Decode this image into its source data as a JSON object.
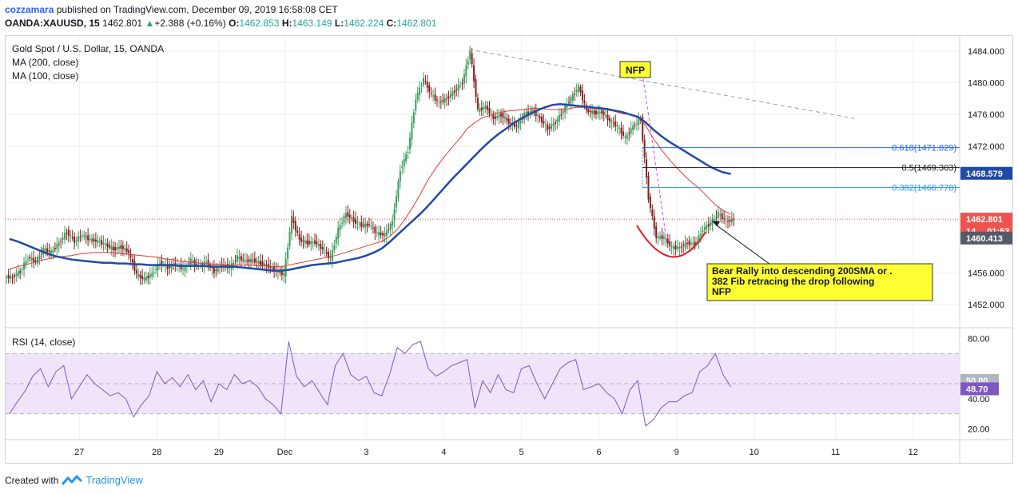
{
  "header": {
    "author": "cozzamara",
    "published_text": "published on TradingView.com, December 09, 2019 16:58:08 CET",
    "symbol": "OANDA:XAUUSD, 15",
    "last": "1462.801",
    "change": "+2.388 (+0.16%)",
    "o_label": "O:",
    "o": "1462.853",
    "h_label": "H:",
    "h": "1463.149",
    "l_label": "L:",
    "l": "1462.224",
    "c_label": "C:",
    "c": "1462.801"
  },
  "legend": [
    "Gold Spot / U.S. Dollar, 15, OANDA",
    "MA (200, close)",
    "MA (100, close)"
  ],
  "rsi_legend": "RSI (14, close)",
  "footer": {
    "created_with": "Created with",
    "brand": "TradingView"
  },
  "colors": {
    "candle": "#3a9e5e",
    "ma100": "#e53935",
    "ma200": "#1f4aa8",
    "rsi": "#7e57c2",
    "rsi_band": "#f0e4fb",
    "fib": "#2196f3",
    "note_bg": "#ffff33",
    "last_price": "#ef5350"
  },
  "chart_data": {
    "type": "candlestick",
    "title": "Gold Spot / U.S. Dollar, 15, OANDA",
    "x_ticks": [
      {
        "label": "27",
        "idx": 9.5
      },
      {
        "label": "28",
        "idx": 19.5
      },
      {
        "label": "29",
        "idx": 27.5
      },
      {
        "label": "Dec",
        "idx": 36
      },
      {
        "label": "3",
        "idx": 46.5
      },
      {
        "label": "4",
        "idx": 56.5
      },
      {
        "label": "5",
        "idx": 66.5
      },
      {
        "label": "6",
        "idx": 76.5
      },
      {
        "label": "9",
        "idx": 86.5
      },
      {
        "label": "10",
        "idx": 96.5
      },
      {
        "label": "11",
        "idx": 107
      },
      {
        "label": "12",
        "idx": 117
      }
    ],
    "x_range": [
      0,
      123
    ],
    "price_axis": {
      "min": 1449.5,
      "max": 1485.5,
      "ticks": [
        "1484.000",
        "1480.000",
        "1476.000",
        "1472.000",
        "1456.000",
        "1452.000"
      ]
    },
    "closes": [
      1455.5,
      1456.2,
      1458.0,
      1457.4,
      1459.0,
      1458.6,
      1459.8,
      1461.2,
      1460.0,
      1460.8,
      1460.2,
      1460.0,
      1459.6,
      1459.0,
      1459.3,
      1458.6,
      1455.8,
      1455.2,
      1455.9,
      1457.3,
      1456.7,
      1457.2,
      1456.5,
      1457.6,
      1456.8,
      1457.4,
      1456.2,
      1457.1,
      1456.7,
      1458.0,
      1457.5,
      1457.6,
      1457.2,
      1456.8,
      1456.3,
      1455.8,
      1463.0,
      1460.2,
      1459.8,
      1459.9,
      1459.0,
      1457.8,
      1461.5,
      1463.5,
      1462.6,
      1462.0,
      1462.1,
      1461.0,
      1460.8,
      1462.5,
      1469.0,
      1471.5,
      1478.0,
      1480.5,
      1478.5,
      1477.5,
      1478.0,
      1479.0,
      1480.0,
      1484.0,
      1476.5,
      1477.0,
      1475.5,
      1476.0,
      1475.0,
      1474.5,
      1476.0,
      1476.5,
      1475.5,
      1474.2,
      1475.0,
      1476.5,
      1478.0,
      1479.5,
      1476.5,
      1476.2,
      1476.3,
      1475.2,
      1474.5,
      1473.0,
      1474.5,
      1475.4,
      1465.5,
      1460.5,
      1460.5,
      1459.2,
      1459.2,
      1459.8,
      1459.6,
      1461.5,
      1462.3,
      1463.5,
      1462.5,
      1462.8
    ],
    "ma100": [
      1456.5,
      1456.8,
      1457.0,
      1457.3,
      1457.6,
      1457.8,
      1458.0,
      1458.1,
      1458.2,
      1458.4,
      1458.5,
      1458.6,
      1458.6,
      1458.6,
      1458.5,
      1458.4,
      1458.3,
      1458.2,
      1458.1,
      1458.0,
      1457.8,
      1457.7,
      1457.5,
      1457.4,
      1457.3,
      1457.2,
      1457.1,
      1457.1,
      1457.0,
      1457.0,
      1457.0,
      1457.0,
      1456.9,
      1456.9,
      1456.8,
      1456.8,
      1457.0,
      1457.2,
      1457.4,
      1457.6,
      1457.8,
      1458.0,
      1458.2,
      1458.5,
      1458.8,
      1459.1,
      1459.4,
      1459.7,
      1460.0,
      1460.6,
      1461.5,
      1462.8,
      1464.3,
      1466.0,
      1467.8,
      1469.3,
      1470.6,
      1471.8,
      1472.9,
      1474.2,
      1475.0,
      1475.6,
      1475.9,
      1476.2,
      1476.4,
      1476.5,
      1476.6,
      1476.7,
      1476.8,
      1476.7,
      1476.6,
      1476.6,
      1476.7,
      1476.9,
      1476.9,
      1476.8,
      1476.7,
      1476.6,
      1476.4,
      1476.1,
      1476.0,
      1475.8,
      1474.6,
      1473.0,
      1471.6,
      1470.4,
      1469.3,
      1468.3,
      1467.4,
      1466.6,
      1465.6,
      1464.6,
      1463.9,
      1463.4
    ],
    "ma200": [
      1460.3,
      1460.0,
      1459.6,
      1459.2,
      1458.8,
      1458.4,
      1458.1,
      1457.9,
      1457.7,
      1457.6,
      1457.5,
      1457.4,
      1457.3,
      1457.3,
      1457.2,
      1457.2,
      1457.1,
      1457.1,
      1457.0,
      1457.0,
      1457.0,
      1457.0,
      1456.9,
      1456.9,
      1456.9,
      1456.9,
      1456.8,
      1456.8,
      1456.8,
      1456.8,
      1456.7,
      1456.6,
      1456.5,
      1456.4,
      1456.3,
      1456.3,
      1456.4,
      1456.6,
      1456.8,
      1457.0,
      1457.1,
      1457.2,
      1457.3,
      1457.5,
      1457.7,
      1457.9,
      1458.2,
      1458.6,
      1459.1,
      1459.9,
      1460.8,
      1461.7,
      1462.6,
      1463.5,
      1464.5,
      1465.6,
      1466.7,
      1467.8,
      1468.8,
      1469.8,
      1470.8,
      1471.8,
      1472.7,
      1473.5,
      1474.2,
      1474.9,
      1475.5,
      1476.0,
      1476.5,
      1476.9,
      1477.2,
      1477.3,
      1477.2,
      1477.1,
      1477.0,
      1476.9,
      1476.8,
      1476.7,
      1476.5,
      1476.3,
      1476.0,
      1475.7,
      1475.0,
      1474.1,
      1473.3,
      1472.6,
      1472.0,
      1471.4,
      1470.8,
      1470.2,
      1469.6,
      1469.1,
      1468.7,
      1468.5
    ],
    "rsi": {
      "range": [
        15,
        85
      ],
      "ticks": [
        "80.00",
        "40.00",
        "20.00"
      ],
      "band": [
        30,
        70
      ],
      "values": [
        30,
        38,
        45,
        55,
        60,
        48,
        58,
        62,
        40,
        48,
        56,
        50,
        46,
        42,
        44,
        40,
        28,
        36,
        42,
        58,
        50,
        54,
        48,
        56,
        46,
        52,
        38,
        50,
        46,
        56,
        50,
        52,
        48,
        40,
        36,
        30,
        78,
        55,
        48,
        52,
        44,
        36,
        62,
        70,
        56,
        52,
        55,
        44,
        42,
        56,
        74,
        70,
        76,
        78,
        60,
        55,
        58,
        62,
        64,
        66,
        34,
        52,
        44,
        56,
        46,
        44,
        60,
        62,
        50,
        40,
        50,
        60,
        64,
        66,
        46,
        48,
        50,
        44,
        40,
        30,
        46,
        52,
        22,
        26,
        34,
        38,
        38,
        42,
        44,
        58,
        62,
        70,
        56,
        48
      ]
    },
    "price_labels": [
      {
        "text": "1468.579",
        "value": 1468.579,
        "color": "#1f4aa8"
      },
      {
        "text": "1462.801",
        "value": 1462.801,
        "color": "#ef5350"
      },
      {
        "text": "14… 01:53",
        "value": 1461.4,
        "color": "#ef5350"
      },
      {
        "text": "1460.413",
        "value": 1460.413,
        "color": "#555a66"
      }
    ],
    "rsi_labels": [
      {
        "text": "50.00",
        "value": 50,
        "color": "#b2b5be"
      },
      {
        "text": "48.70",
        "value": 48.7,
        "color": "#7e57c2"
      }
    ],
    "fib_levels": [
      {
        "label": "0.618(1471.829)",
        "value": 1471.829,
        "color": "#2962ff"
      },
      {
        "label": "0.5(1469.303)",
        "value": 1469.303,
        "color": "#131722"
      },
      {
        "label": "0.382(1466.778)",
        "value": 1466.778,
        "color": "#2196f3"
      }
    ],
    "annotations": {
      "nfp_label": "NFP",
      "note_line1": "Bear Rally into descending 200SMA or .",
      "note_line2": "382 Fib retracing the drop following",
      "note_line3": "NFP"
    }
  }
}
